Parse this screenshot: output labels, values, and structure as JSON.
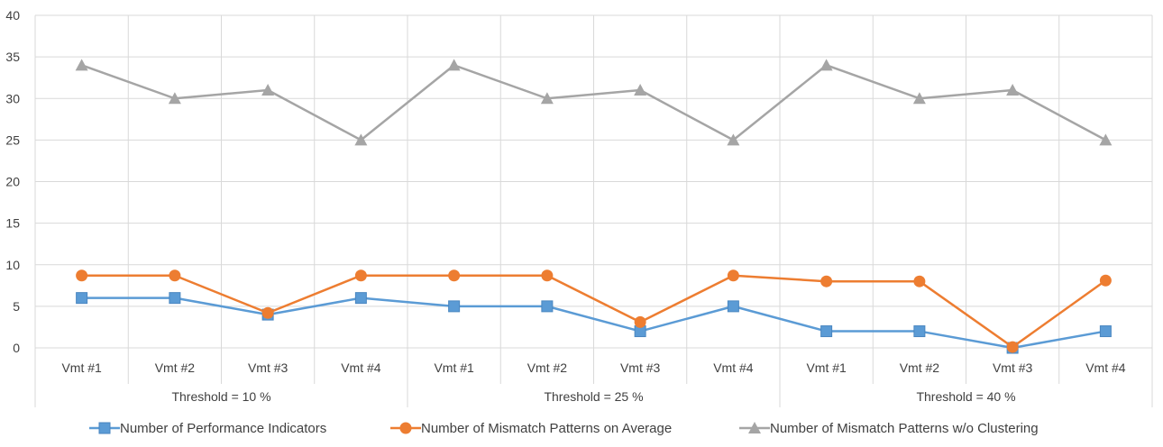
{
  "chart_data": {
    "type": "line",
    "title": "",
    "xlabel": "",
    "ylabel": "",
    "ylim": [
      0,
      40
    ],
    "yticks": [
      0,
      5,
      10,
      15,
      20,
      25,
      30,
      35,
      40
    ],
    "grid": true,
    "legend_position": "bottom",
    "categories": [
      "Vmt #1",
      "Vmt #2",
      "Vmt #3",
      "Vmt #4",
      "Vmt #1",
      "Vmt #2",
      "Vmt #3",
      "Vmt #4",
      "Vmt #1",
      "Vmt #2",
      "Vmt #3",
      "Vmt #4"
    ],
    "groups": [
      {
        "label": "Threshold = 10 %",
        "count": 4
      },
      {
        "label": "Threshold = 25 %",
        "count": 4
      },
      {
        "label": "Threshold = 40 %",
        "count": 4
      }
    ],
    "series": [
      {
        "name": "Number of Performance Indicators",
        "color": "#5B9BD5",
        "marker": "square",
        "values": [
          6,
          6,
          4,
          6,
          5,
          5,
          2,
          5,
          2,
          2,
          0,
          2
        ]
      },
      {
        "name": "Number of Mismatch Patterns on Average",
        "color": "#ED7D31",
        "marker": "circle",
        "values": [
          8.7,
          8.7,
          4.2,
          8.7,
          8.7,
          8.7,
          3.1,
          8.7,
          8.0,
          8.0,
          0.1,
          8.1
        ]
      },
      {
        "name": "Number of Mismatch Patterns w/o Clustering",
        "color": "#A5A5A5",
        "marker": "triangle",
        "values": [
          34,
          30,
          31,
          25,
          34,
          30,
          31,
          25,
          34,
          30,
          31,
          25
        ]
      }
    ]
  }
}
